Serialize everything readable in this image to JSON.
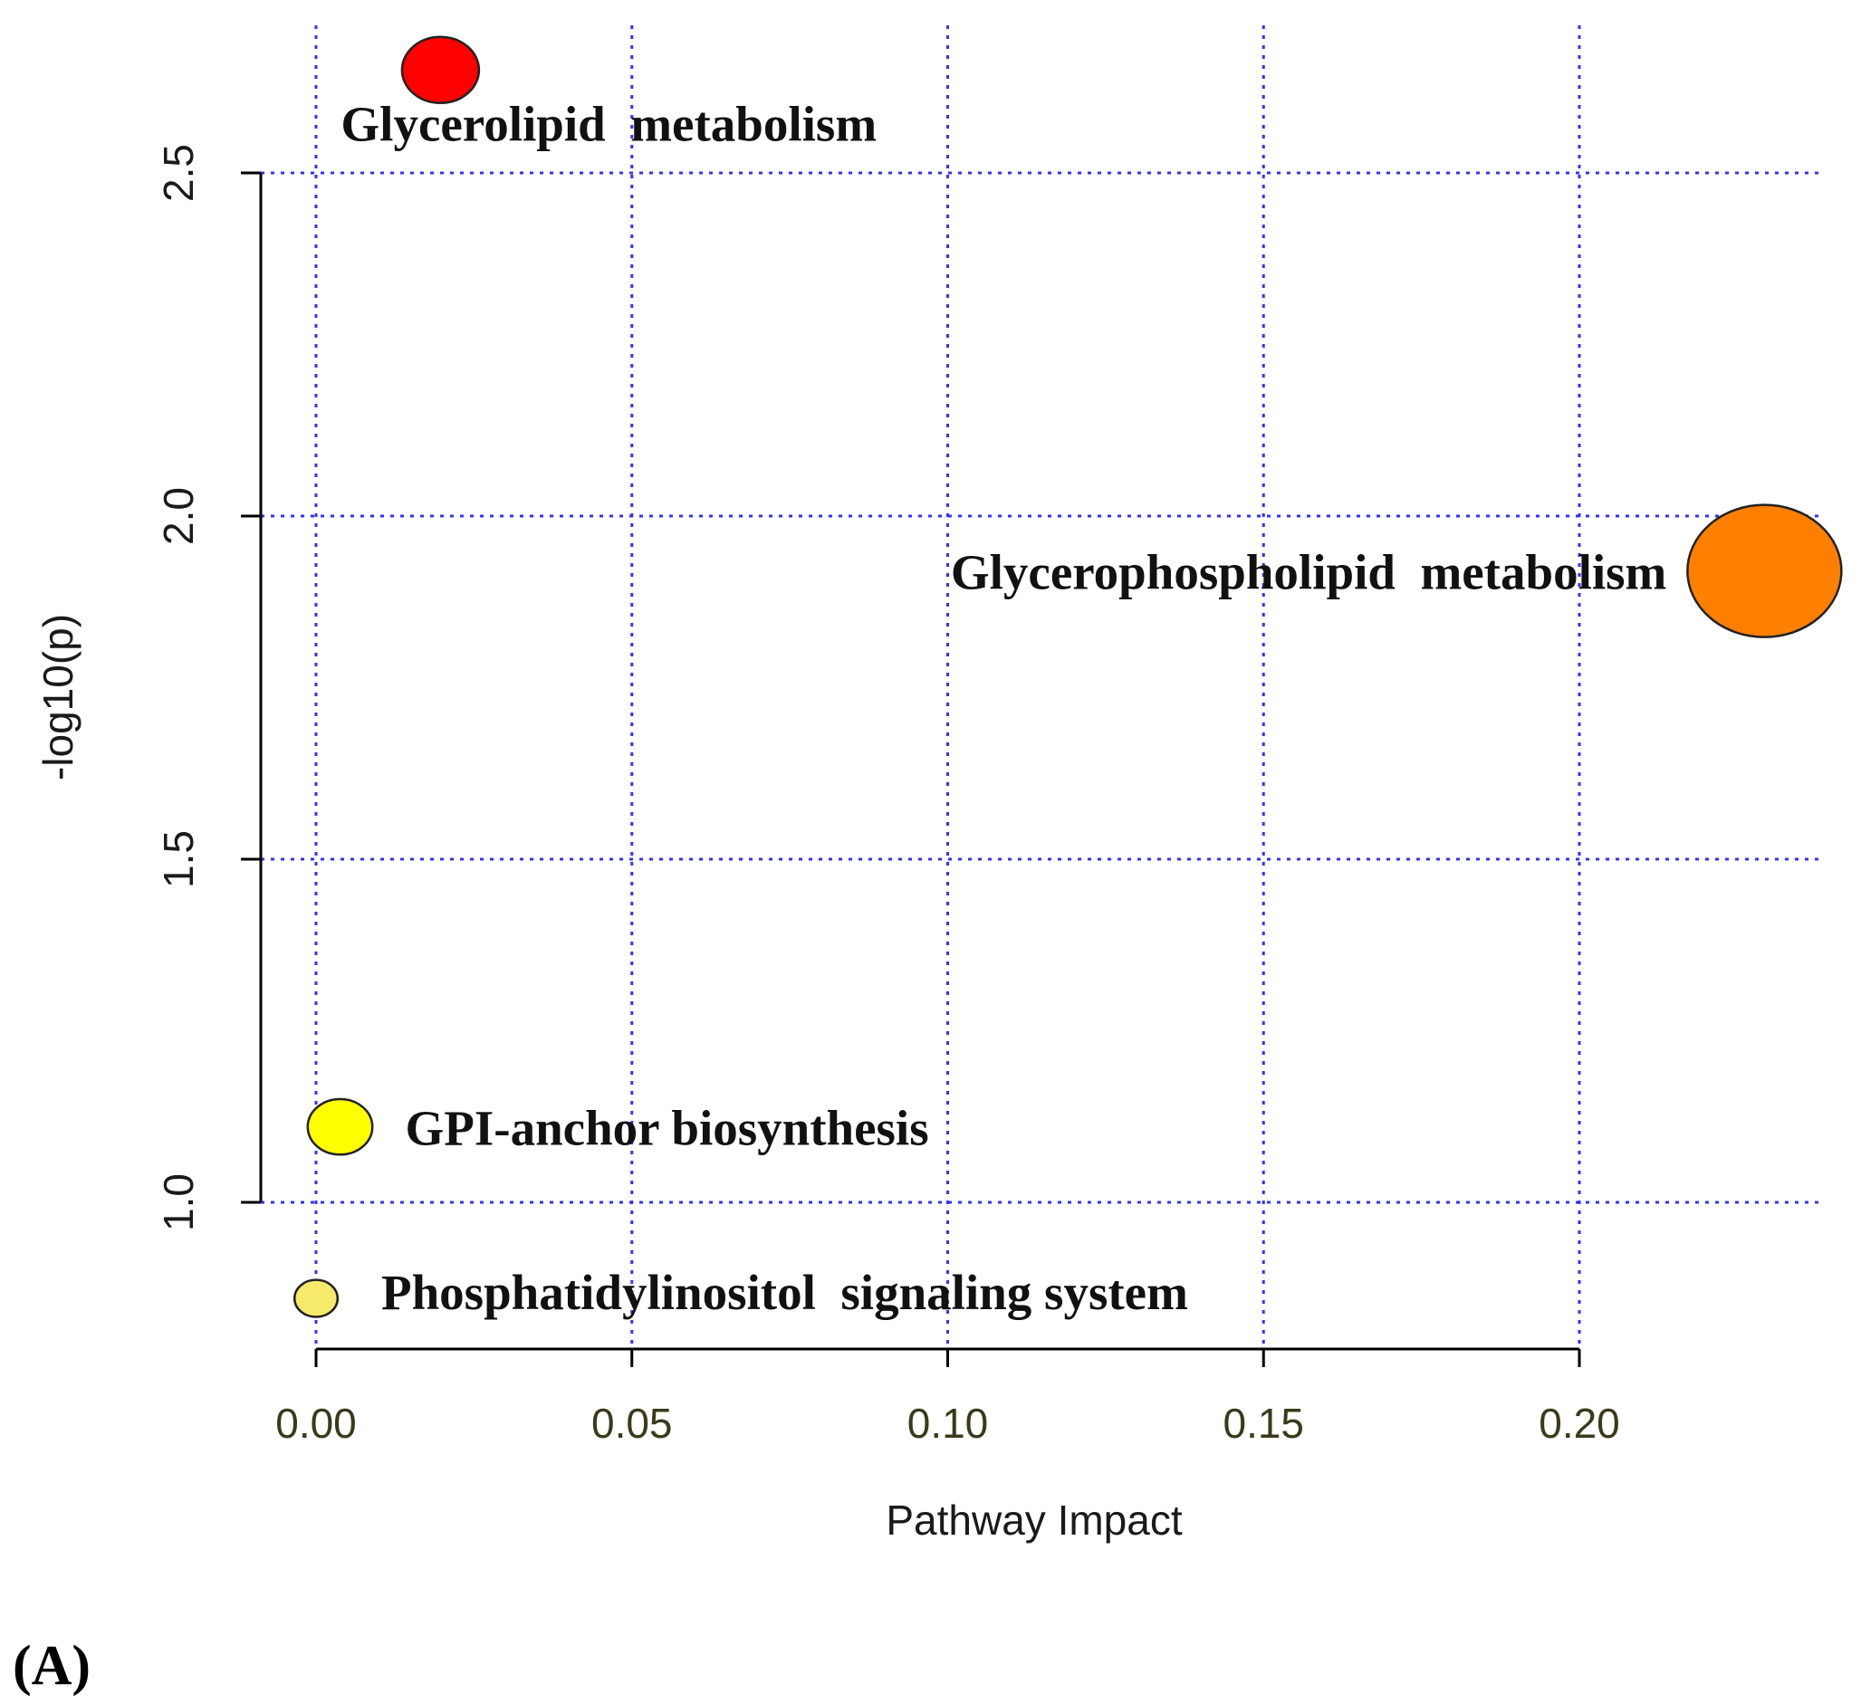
{
  "panel_label": "(A)",
  "chart_data": {
    "type": "scatter",
    "xlabel": "Pathway Impact",
    "ylabel": "-log10(p)",
    "x_ticks": [
      "0.00",
      "0.05",
      "0.10",
      "0.15",
      "0.20"
    ],
    "y_ticks": [
      "1.0",
      "1.5",
      "2.0",
      "2.5"
    ],
    "x_tick_values": [
      0.0,
      0.05,
      0.1,
      0.15,
      0.2
    ],
    "y_tick_values": [
      1.0,
      1.5,
      2.0,
      2.5
    ],
    "grid": true,
    "grid_color": "#3333ff",
    "points": [
      {
        "label": "Glycerolipid  metabolism",
        "x": 0.0197,
        "y": 2.65,
        "size": 0.5,
        "color": "#ff0000"
      },
      {
        "label": "Glycerophospholipid  metabolism",
        "x": 0.2293,
        "y": 1.92,
        "size": 1.0,
        "color": "#ff8000"
      },
      {
        "label": "GPI-anchor biosynthesis",
        "x": 0.0038,
        "y": 1.11,
        "size": 0.42,
        "color": "#ffff00"
      },
      {
        "label": "Phosphatidylinositol  signaling system",
        "x": 0.0,
        "y": 0.86,
        "size": 0.28,
        "color": "#f5ea6a"
      }
    ]
  }
}
